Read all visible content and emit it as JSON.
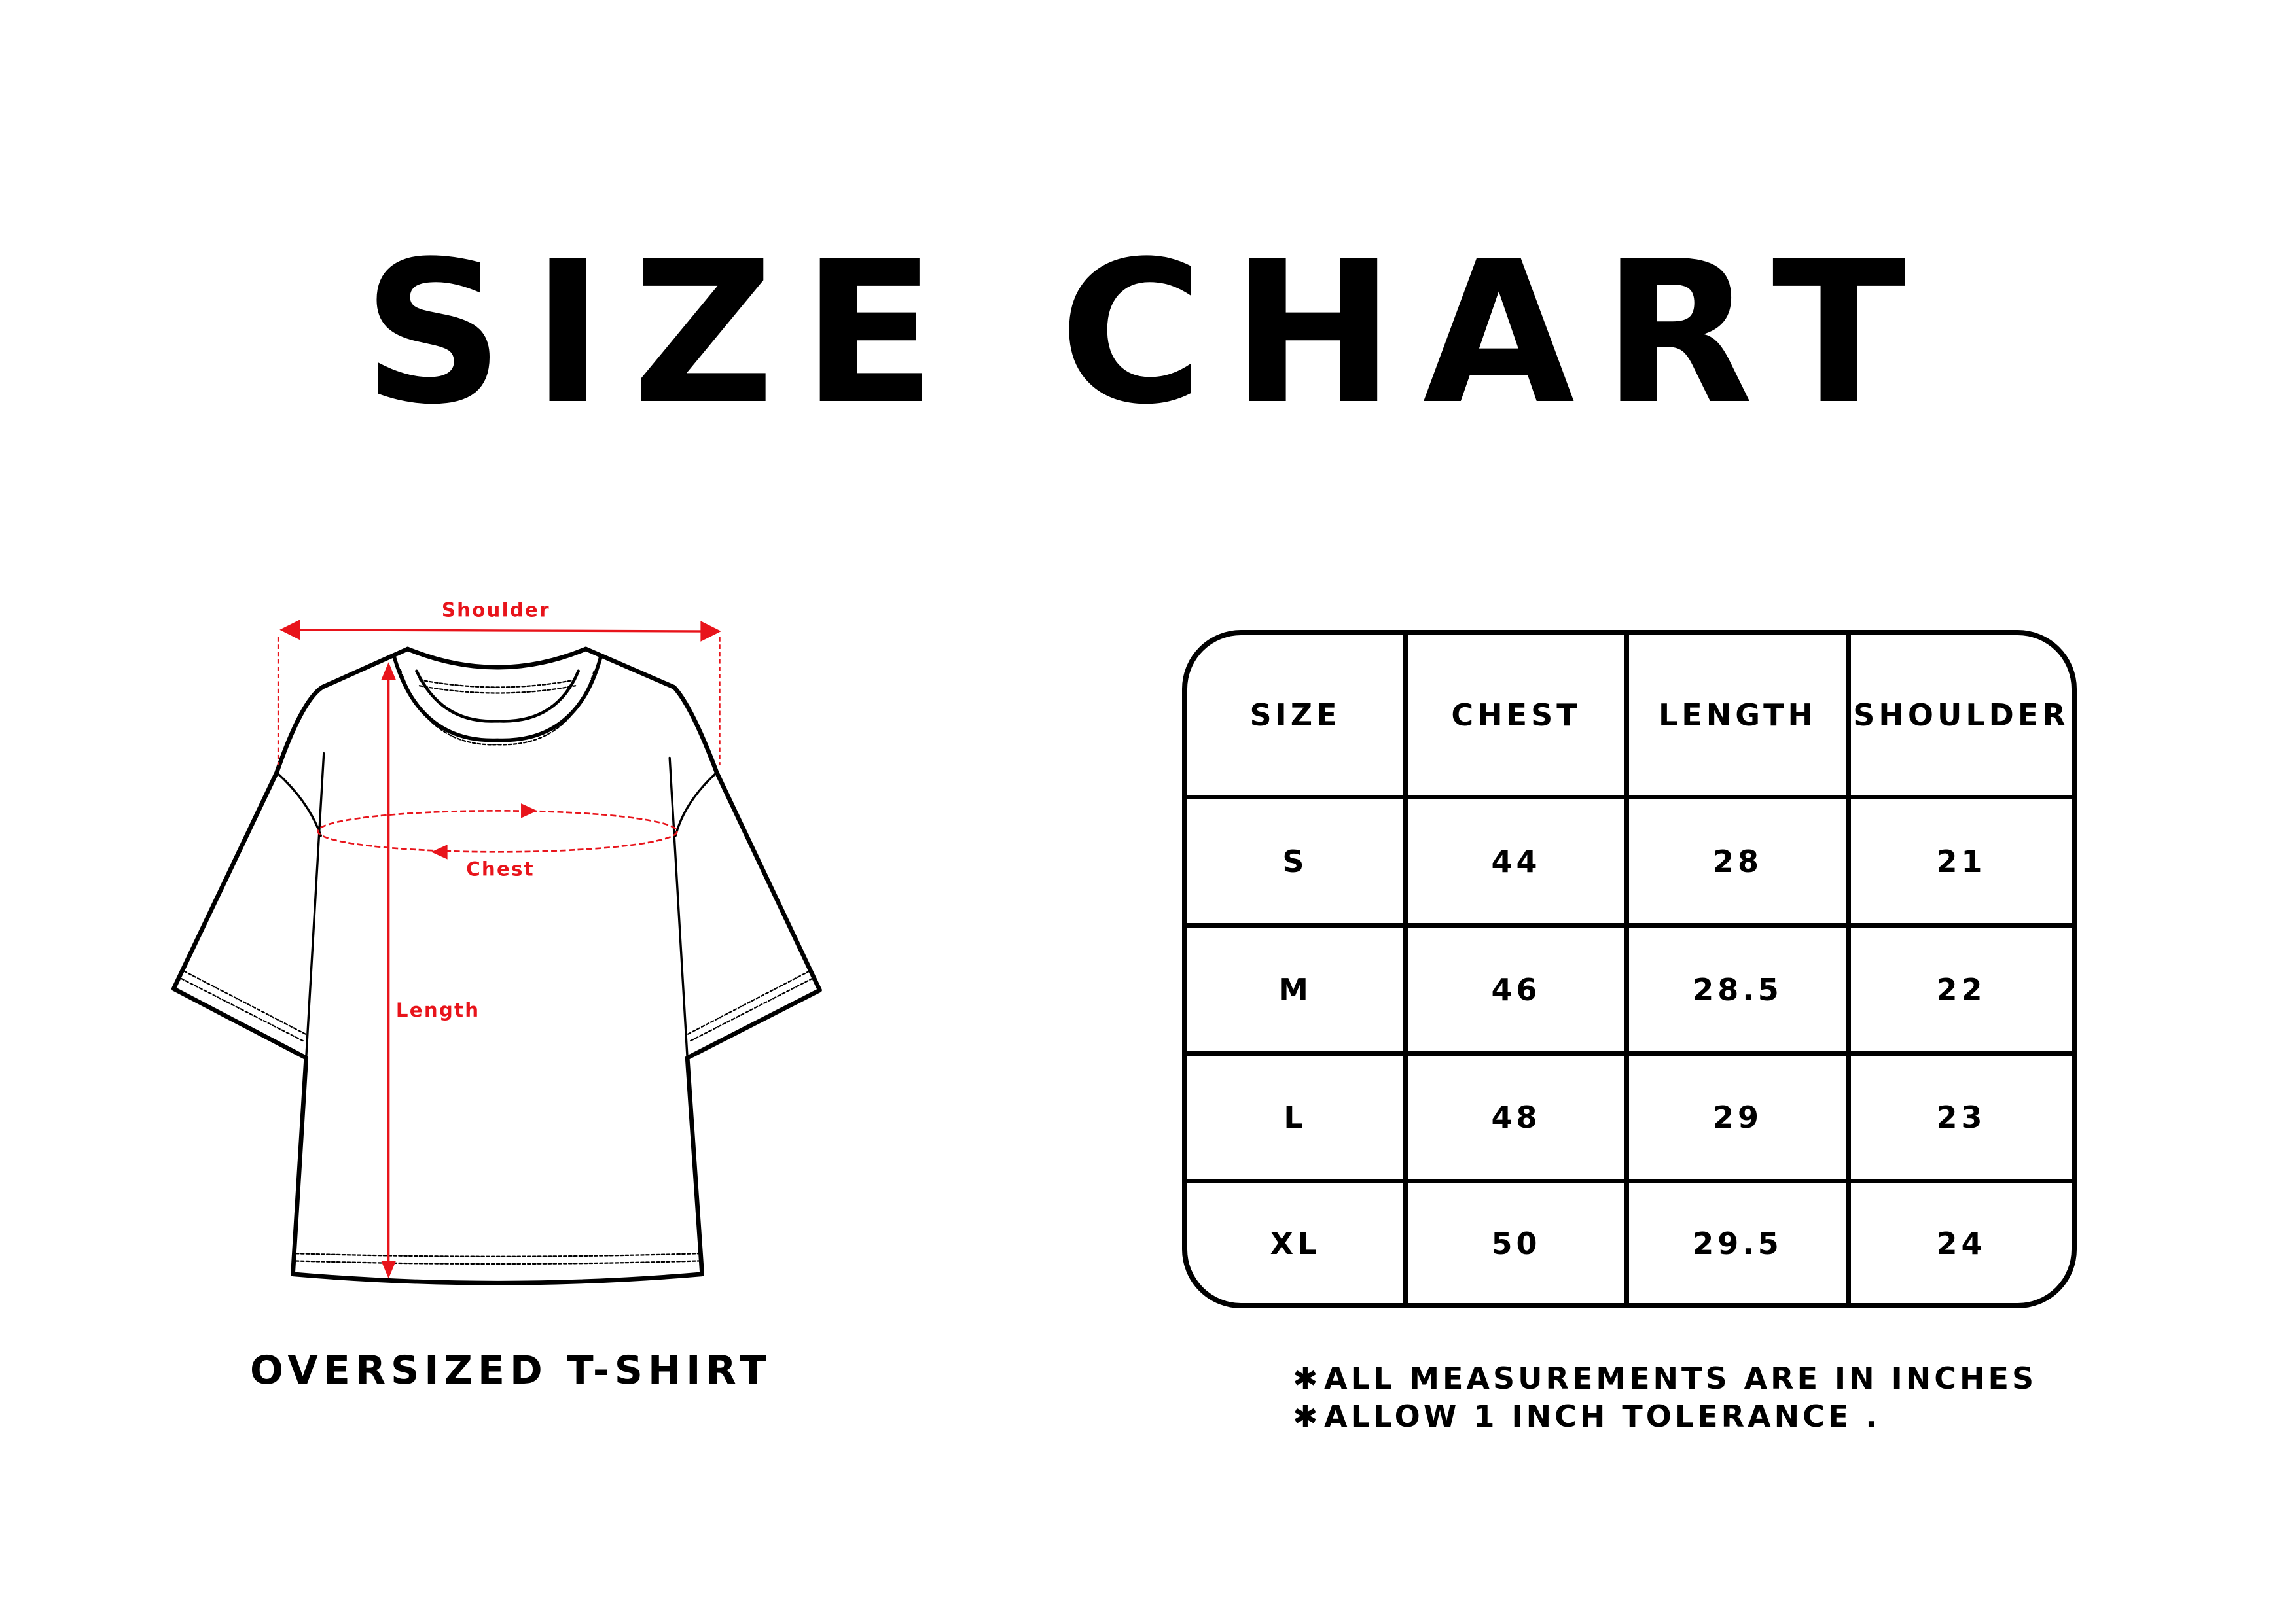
{
  "title": "SIZE CHART",
  "diagram": {
    "labels": {
      "shoulder": "Shoulder",
      "chest": "Chest",
      "length": "Length"
    },
    "caption": "OVERSIZED T-SHIRT",
    "accent_color": "#e8141b"
  },
  "table": {
    "headers": [
      "SIZE",
      "CHEST",
      "LENGTH",
      "SHOULDER"
    ],
    "rows": [
      [
        "S",
        "44",
        "28",
        "21"
      ],
      [
        "M",
        "46",
        "28.5",
        "22"
      ],
      [
        "L",
        "48",
        "29",
        "23"
      ],
      [
        "XL",
        "50",
        "29.5",
        "24"
      ]
    ]
  },
  "notes": [
    {
      "bullet": "✱",
      "text": "ALL MEASUREMENTS ARE IN INCHES"
    },
    {
      "bullet": "✱",
      "text": "ALLOW 1 INCH TOLERANCE ."
    }
  ]
}
